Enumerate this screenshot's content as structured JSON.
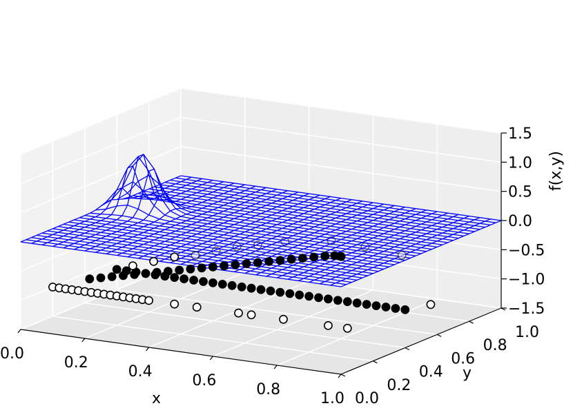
{
  "chart_data": {
    "type": "3d-surface-scatter",
    "title": "",
    "xlabel": "x",
    "ylabel": "y",
    "zlabel": "f(x,y)",
    "xlim": [
      0,
      1
    ],
    "ylim": [
      0,
      1
    ],
    "zlim": [
      -1.5,
      1.5
    ],
    "x_ticks": [
      "0.0",
      "0.2",
      "0.4",
      "0.6",
      "0.8",
      "1.0"
    ],
    "y_ticks": [
      "0.0",
      "0.2",
      "0.4",
      "0.6",
      "0.8",
      "1.0"
    ],
    "z_ticks": [
      "−1.5",
      "−1.0",
      "−0.5",
      "0.0",
      "0.5",
      "1.0",
      "1.5"
    ],
    "grid": true,
    "colors": {
      "surface": "#0000ff",
      "points": "#000000",
      "pane_back": "#eeeeee",
      "pane_side": "#f2f2f2",
      "pane_floor": "#e6e6e6",
      "gridline": "#ffffff"
    },
    "surface": {
      "description": "wireframe of f(x,y): flat plane at z=0 with a Gaussian peak near x≈0.1, y≈0.55",
      "grid_n": 30,
      "peak": {
        "x": 0.1,
        "y": 0.55,
        "height": 1.0
      }
    },
    "series": [
      {
        "marker": "filled",
        "points_x": [
          0.05,
          0.08,
          0.11,
          0.14,
          0.17,
          0.2,
          0.23,
          0.26,
          0.29,
          0.32,
          0.35,
          0.38,
          0.41,
          0.44,
          0.47,
          0.5,
          0.53,
          0.56,
          0.59,
          0.62,
          0.65,
          0.68,
          0.71,
          0.74,
          0.77,
          0.8,
          0.83,
          0.86,
          0.89,
          0.92,
          0.95,
          0.04,
          0.06,
          0.08,
          0.1,
          0.12,
          0.14,
          0.16,
          0.18,
          0.2,
          0.22,
          0.24,
          0.26,
          0.28,
          0.3,
          0.32,
          0.34,
          0.36,
          0.38,
          0.4,
          0.42,
          0.44,
          0.46,
          0.48,
          0.5
        ],
        "points_y": [
          0.5,
          0.5,
          0.5,
          0.5,
          0.5,
          0.5,
          0.5,
          0.5,
          0.5,
          0.5,
          0.5,
          0.5,
          0.5,
          0.5,
          0.5,
          0.5,
          0.5,
          0.5,
          0.5,
          0.5,
          0.5,
          0.5,
          0.5,
          0.5,
          0.5,
          0.5,
          0.5,
          0.5,
          0.5,
          0.5,
          0.5,
          0.35,
          0.38,
          0.41,
          0.44,
          0.47,
          0.5,
          0.53,
          0.56,
          0.59,
          0.62,
          0.65,
          0.68,
          0.71,
          0.74,
          0.77,
          0.8,
          0.83,
          0.86,
          0.89,
          0.92,
          0.95,
          0.98,
          1.0,
          1.0
        ],
        "points_z": [
          -1.0,
          -1.0,
          -1.0,
          -1.0,
          -1.0,
          -1.0,
          -1.0,
          -1.0,
          -1.0,
          -1.0,
          -1.0,
          -1.0,
          -1.0,
          -1.0,
          -1.0,
          -1.0,
          -1.0,
          -1.0,
          -1.0,
          -1.0,
          -1.0,
          -1.0,
          -1.0,
          -1.0,
          -1.0,
          -1.0,
          -1.0,
          -1.0,
          -1.0,
          -1.0,
          -1.0,
          -1.0,
          -1.0,
          -1.0,
          -1.0,
          -1.0,
          -1.0,
          -1.0,
          -1.0,
          -1.0,
          -1.0,
          -1.0,
          -1.0,
          -1.0,
          -1.0,
          -1.0,
          -1.0,
          -1.0,
          -1.0,
          -1.0,
          -1.0,
          -1.0,
          -1.0,
          -1.0,
          -1.0
        ]
      },
      {
        "marker": "open",
        "points_x": [
          0.0,
          0.02,
          0.04,
          0.06,
          0.08,
          0.1,
          0.12,
          0.14,
          0.16,
          0.18,
          0.2,
          0.22,
          0.24,
          0.26,
          0.28,
          0.3,
          0.38,
          0.45,
          0.58,
          0.62,
          0.72,
          0.86,
          0.92,
          0.1,
          0.14,
          0.18,
          0.22,
          0.26,
          0.3,
          0.34,
          0.4,
          0.52,
          0.6,
          0.7,
          0.98
        ],
        "points_y": [
          0.2,
          0.2,
          0.2,
          0.2,
          0.2,
          0.2,
          0.2,
          0.2,
          0.2,
          0.2,
          0.2,
          0.2,
          0.2,
          0.2,
          0.2,
          0.2,
          0.2,
          0.2,
          0.2,
          0.2,
          0.2,
          0.2,
          0.2,
          0.5,
          0.55,
          0.6,
          0.65,
          0.7,
          0.75,
          0.8,
          0.85,
          0.9,
          0.95,
          0.98,
          0.6
        ],
        "points_z": [
          -1.0,
          -1.0,
          -1.0,
          -1.0,
          -1.0,
          -1.0,
          -1.0,
          -1.0,
          -1.0,
          -1.0,
          -1.0,
          -1.0,
          -1.0,
          -1.0,
          -1.0,
          -1.0,
          -1.0,
          -1.0,
          -1.0,
          -1.0,
          -1.0,
          -1.0,
          -1.0,
          -0.9,
          -0.85,
          -0.8,
          -0.8,
          -0.75,
          -0.7,
          -0.7,
          -0.65,
          -0.6,
          -0.7,
          -0.8,
          -1.0
        ]
      }
    ]
  }
}
